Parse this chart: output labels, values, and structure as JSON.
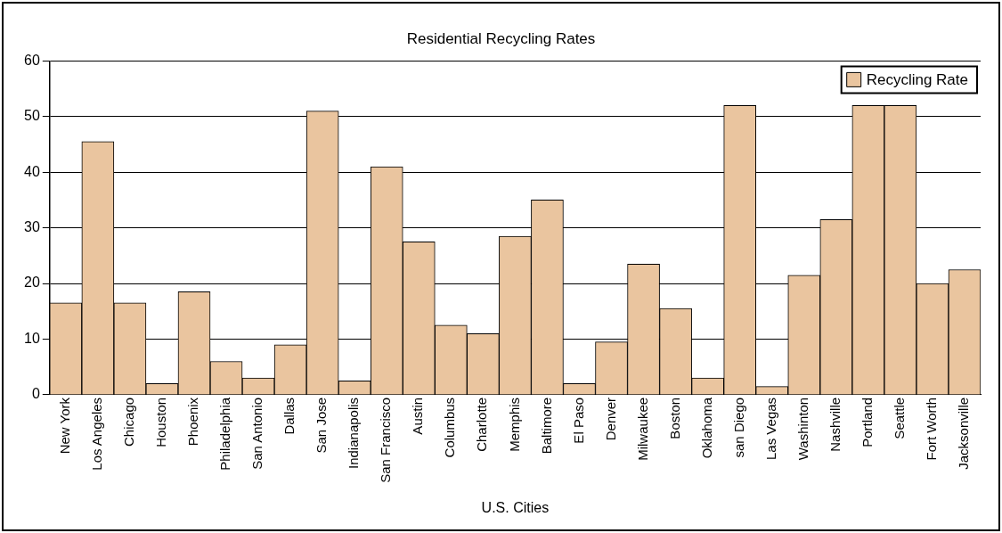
{
  "chart_data": {
    "type": "bar",
    "title": "Residential Recycling Rates",
    "xlabel": "U.S. Cities",
    "categories": [
      "New York",
      "Los Angeles",
      "Chicago",
      "Houston",
      "Phoenix",
      "Philadelphia",
      "San Antonio",
      "Dallas",
      "San Jose",
      "Indianapolis",
      "San Francisco",
      "Austin",
      "Columbus",
      "Charlotte",
      "Memphis",
      "Baltimore",
      "El Paso",
      "Denver",
      "Milwaukee",
      "Boston",
      "Oklahoma",
      "san Diego",
      "Las Vegas",
      "Washinton",
      "Nashville",
      "Portland",
      "Seattle",
      "Fort Worth",
      "Jacksonville"
    ],
    "series": [
      {
        "name": "Recycling Rate",
        "color": "#eac59f",
        "values": [
          16.5,
          45.5,
          16.5,
          2,
          18.5,
          6,
          3,
          9,
          51,
          2.5,
          41,
          27.5,
          12.5,
          11,
          28.5,
          35,
          2,
          9.5,
          23.5,
          15.5,
          3,
          52,
          1.5,
          21.5,
          31.5,
          52,
          52,
          20,
          22.5
        ]
      }
    ],
    "ylim": [
      0,
      60
    ],
    "yticks": [
      0,
      10,
      20,
      30,
      40,
      50,
      60
    ],
    "grid": "y",
    "legend": "top right"
  }
}
